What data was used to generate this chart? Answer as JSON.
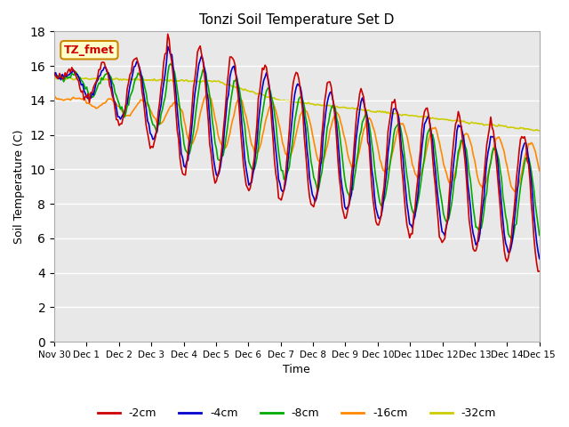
{
  "title": "Tonzi Soil Temperature Set D",
  "xlabel": "Time",
  "ylabel": "Soil Temperature (C)",
  "ylim": [
    0,
    18
  ],
  "yticks": [
    0,
    2,
    4,
    6,
    8,
    10,
    12,
    14,
    16,
    18
  ],
  "legend_labels": [
    "-2cm",
    "-4cm",
    "-8cm",
    "-16cm",
    "-32cm"
  ],
  "legend_colors": [
    "#cc0000",
    "#0000cc",
    "#00aa00",
    "#ff8800",
    "#cccc00"
  ],
  "line_widths": [
    1.2,
    1.2,
    1.2,
    1.2,
    1.2
  ],
  "annotation_text": "TZ_fmet",
  "annotation_bg": "#ffffcc",
  "annotation_border": "#cc8800",
  "bg_color": "#ffffff",
  "plot_bg_color": "#e8e8e8",
  "grid_color": "#ffffff",
  "n_points": 360,
  "x_start": 0,
  "x_end": 15.0,
  "xtick_positions": [
    0,
    1,
    2,
    3,
    4,
    5,
    6,
    7,
    8,
    9,
    10,
    11,
    12,
    13,
    14,
    15
  ],
  "xtick_labels": [
    "Nov 30",
    "Dec 1",
    "Dec 2",
    "Dec 3",
    "Dec 4",
    "Dec 5",
    "Dec 6",
    "Dec 7",
    "Dec 8",
    "Dec 9",
    "Dec 10",
    "Dec 11",
    "Dec 12",
    "Dec 13",
    "Dec 14",
    "Dec 15"
  ]
}
